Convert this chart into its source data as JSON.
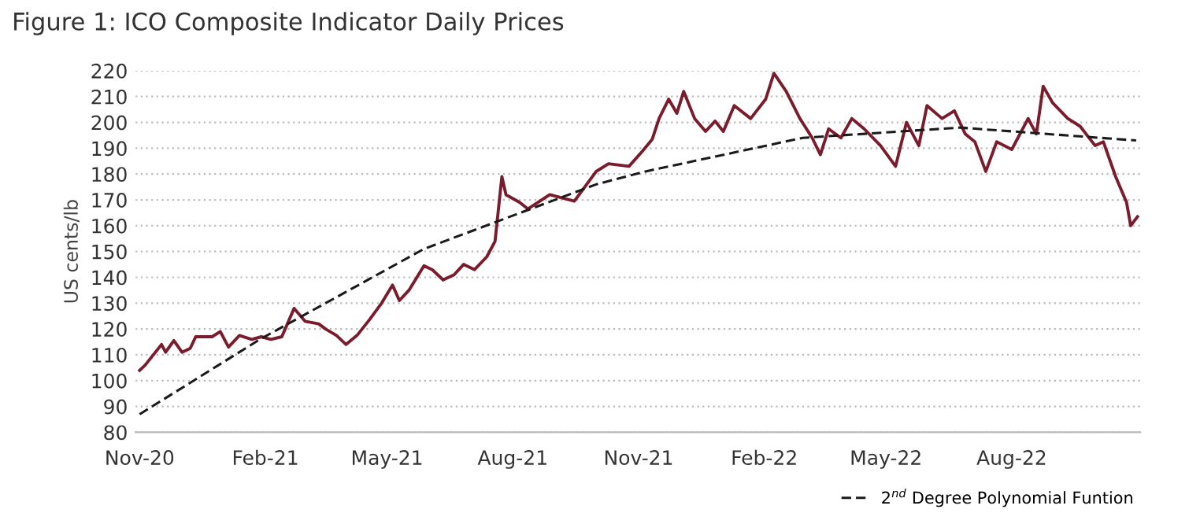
{
  "chart_data": {
    "type": "line",
    "title": "Figure 1: ICO Composite Indicator Daily Prices",
    "ylabel": "US cents/lb",
    "xlim": [
      "2020-10-29",
      "2022-11-03"
    ],
    "xticks": [
      {
        "value": "2020-11-01",
        "label": "Nov-20"
      },
      {
        "value": "2021-02-01",
        "label": "Feb-21"
      },
      {
        "value": "2021-05-01",
        "label": "May-21"
      },
      {
        "value": "2021-08-01",
        "label": "Aug-21"
      },
      {
        "value": "2021-11-01",
        "label": "Nov-21"
      },
      {
        "value": "2022-02-01",
        "label": "Feb-22"
      },
      {
        "value": "2022-05-01",
        "label": "May-22"
      },
      {
        "value": "2022-08-01",
        "label": "Aug-22"
      }
    ],
    "ylim": [
      80,
      220
    ],
    "yticks": [
      80,
      90,
      100,
      110,
      120,
      130,
      140,
      150,
      160,
      170,
      180,
      190,
      200,
      210,
      220
    ],
    "grid": "y",
    "legend": "bottom right",
    "series": [
      {
        "color": "#7b1c2c",
        "line_style": "solid",
        "x": [
          "2020-11-01",
          "2020-11-05",
          "2020-11-17",
          "2020-11-20",
          "2020-11-26",
          "2020-12-02",
          "2020-12-08",
          "2020-12-12",
          "2020-12-24",
          "2020-12-30",
          "2021-01-05",
          "2021-01-13",
          "2021-01-22",
          "2021-01-29",
          "2021-02-05",
          "2021-02-13",
          "2021-02-22",
          "2021-03-02",
          "2021-03-12",
          "2021-03-17",
          "2021-03-25",
          "2021-04-01",
          "2021-04-09",
          "2021-04-18",
          "2021-04-27",
          "2021-05-05",
          "2021-05-10",
          "2021-05-17",
          "2021-05-28",
          "2021-06-03",
          "2021-06-11",
          "2021-06-19",
          "2021-06-26",
          "2021-07-04",
          "2021-07-13",
          "2021-07-19",
          "2021-07-24",
          "2021-07-27",
          "2021-08-06",
          "2021-08-12",
          "2021-08-28",
          "2021-09-15",
          "2021-10-01",
          "2021-10-10",
          "2021-10-25",
          "2021-11-04",
          "2021-11-11",
          "2021-11-16",
          "2021-11-23",
          "2021-11-29",
          "2021-12-04",
          "2021-12-12",
          "2021-12-20",
          "2021-12-27",
          "2022-01-02",
          "2022-01-10",
          "2022-01-22",
          "2022-02-02",
          "2022-02-08",
          "2022-02-17",
          "2022-02-27",
          "2022-03-08",
          "2022-03-14",
          "2022-03-20",
          "2022-03-29",
          "2022-04-06",
          "2022-04-15",
          "2022-04-27",
          "2022-05-08",
          "2022-05-16",
          "2022-05-25",
          "2022-05-31",
          "2022-06-11",
          "2022-06-20",
          "2022-06-28",
          "2022-07-05",
          "2022-07-13",
          "2022-07-21",
          "2022-08-01",
          "2022-08-13",
          "2022-08-19",
          "2022-08-24",
          "2022-08-31",
          "2022-09-11",
          "2022-09-20",
          "2022-10-01",
          "2022-10-07",
          "2022-10-16",
          "2022-10-24",
          "2022-10-27",
          "2022-11-01"
        ],
        "values": [
          104,
          106,
          114,
          111,
          115.5,
          111,
          112.5,
          117,
          117,
          119,
          113,
          117.5,
          116,
          117,
          116,
          117,
          128,
          123,
          122,
          120,
          117.5,
          114,
          117.5,
          123.5,
          130,
          137,
          131,
          135,
          144.5,
          143,
          139,
          141,
          145,
          143,
          148,
          154,
          179,
          172,
          169,
          166.5,
          172,
          169.5,
          181,
          184,
          183,
          189,
          193.5,
          201.5,
          209,
          203.5,
          212,
          201.5,
          196.5,
          200.5,
          196.5,
          206.5,
          201.5,
          209,
          219,
          212,
          201.5,
          194,
          187.5,
          197.5,
          194,
          201.5,
          197.5,
          191,
          183,
          200,
          191,
          206.5,
          201.5,
          204.5,
          195.5,
          192.5,
          181,
          192.5,
          189.5,
          201.5,
          195.5,
          214,
          207.5,
          201.5,
          198.5,
          191,
          192.5,
          179,
          169,
          160,
          163.5
        ]
      },
      {
        "name": "2$^{nd}$ Degree Polynomial Funtion",
        "color": "#1a1a1a",
        "line_style": "dashed",
        "x": [
          "2020-11-01",
          "2021-01-28",
          "2021-05-28",
          "2021-10-01",
          "2021-11-06",
          "2022-03-01",
          "2022-06-24",
          "2022-10-31"
        ],
        "values": [
          87,
          116,
          151,
          176,
          181,
          194,
          198,
          193
        ]
      }
    ]
  }
}
